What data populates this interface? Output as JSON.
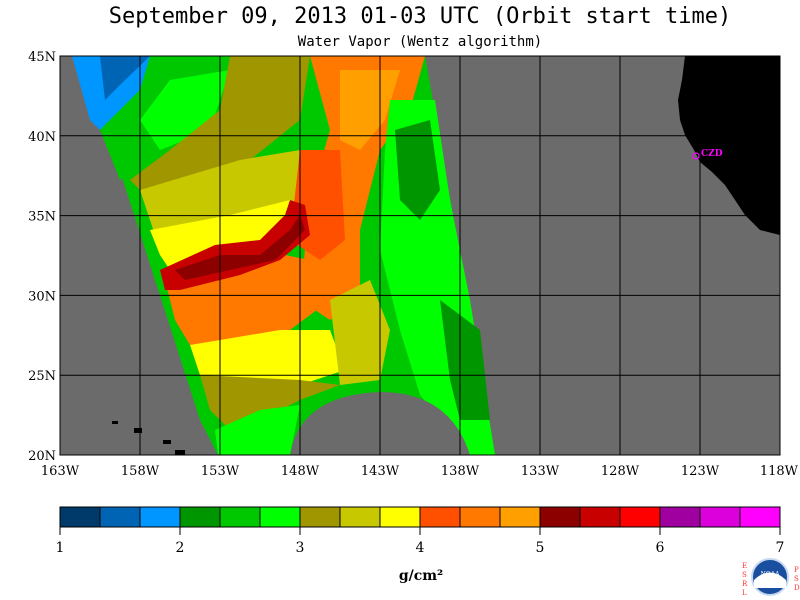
{
  "title": "September 09, 2013  01-03 UTC  (Orbit start time)",
  "subtitle": "Water Vapor (Wentz algorithm)",
  "map": {
    "lat_labels": [
      "45N",
      "40N",
      "35N",
      "30N",
      "25N",
      "20N"
    ],
    "lon_labels": [
      "163W",
      "158W",
      "153W",
      "148W",
      "143W",
      "138W",
      "133W",
      "128W",
      "123W",
      "118W"
    ],
    "station_label": "CZD",
    "colors": {
      "no_data": "#6b6b6b",
      "land": "#000000",
      "station": "#ff00ff",
      "grid": "#000000"
    }
  },
  "colorbar": {
    "unit": "g/cm²",
    "tick_labels": [
      "1",
      "2",
      "3",
      "4",
      "5",
      "6",
      "7"
    ],
    "colors": [
      "#003a6b",
      "#0064b4",
      "#0096ff",
      "#009600",
      "#00c800",
      "#00ff00",
      "#a09600",
      "#c8c800",
      "#ffff00",
      "#ff5000",
      "#ff7800",
      "#ffa000",
      "#8c0000",
      "#c80000",
      "#ff0000",
      "#a000a0",
      "#dc00dc",
      "#ff00ff"
    ]
  },
  "logo": {
    "left_text": "ESRL",
    "right_text": "PSD",
    "center_text": "NOAA"
  }
}
